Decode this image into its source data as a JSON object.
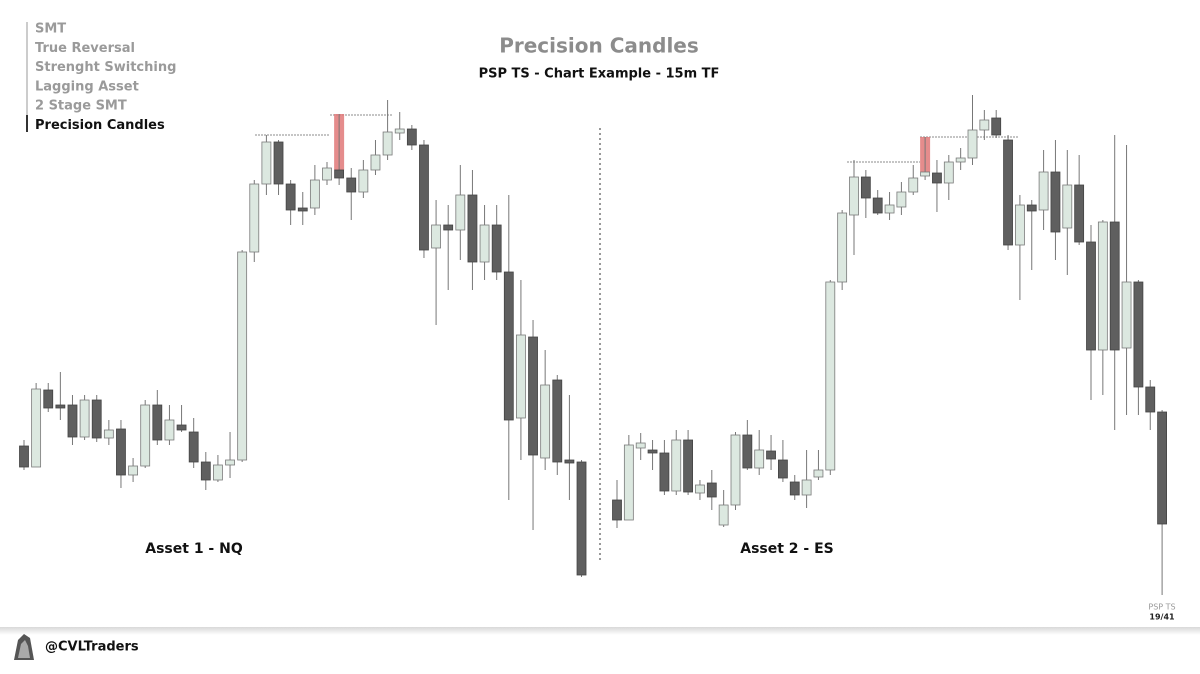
{
  "menu": [
    "SMT",
    "True Reversal",
    "Strenght Switching",
    "Lagging Asset",
    "2 Stage SMT",
    "Precision Candles"
  ],
  "header": {
    "title": "Precision Candles",
    "subtitle": "PSP TS - Chart Example - 15m TF"
  },
  "footer": {
    "handle": "@CVLTraders",
    "deck": "PSP TS",
    "page": "19/41"
  },
  "chart_data": [
    {
      "type": "candlestick",
      "label": "Asset 1 - NQ",
      "ylim": [
        0,
        600
      ],
      "up_color": "#dce8e0",
      "down_color": "#5f5f5f",
      "highlight": [
        26
      ],
      "highlight_color": "#e07878",
      "open": [
        154,
        133,
        210,
        195,
        195,
        163,
        200,
        162,
        171,
        125,
        134,
        195,
        160,
        175,
        168,
        138,
        120,
        135,
        140,
        348,
        416,
        458,
        416,
        392,
        392,
        420,
        430,
        422,
        408,
        430,
        445,
        467,
        471,
        455,
        352,
        375,
        370,
        405,
        338,
        375,
        328,
        182,
        263,
        142,
        220,
        140,
        138
      ],
      "high": [
        160,
        217,
        217,
        228,
        205,
        205,
        205,
        180,
        180,
        142,
        200,
        210,
        195,
        195,
        182,
        148,
        145,
        168,
        350,
        420,
        465,
        460,
        420,
        408,
        435,
        438,
        486,
        432,
        440,
        460,
        500,
        488,
        475,
        460,
        400,
        395,
        435,
        430,
        395,
        395,
        405,
        320,
        280,
        250,
        225,
        205,
        140
      ],
      "low": [
        130,
        133,
        188,
        180,
        155,
        160,
        158,
        155,
        112,
        118,
        132,
        155,
        155,
        168,
        132,
        110,
        118,
        122,
        138,
        338,
        405,
        405,
        375,
        375,
        385,
        415,
        415,
        380,
        402,
        425,
        440,
        460,
        450,
        342,
        275,
        310,
        340,
        310,
        320,
        320,
        100,
        140,
        70,
        130,
        125,
        100,
        23
      ],
      "close": [
        133,
        211,
        192,
        192,
        163,
        200,
        162,
        170,
        125,
        134,
        195,
        160,
        180,
        170,
        138,
        120,
        135,
        140,
        348,
        416,
        458,
        416,
        390,
        389,
        420,
        432,
        422,
        408,
        430,
        445,
        468,
        471,
        455,
        350,
        375,
        370,
        405,
        338,
        375,
        328,
        180,
        265,
        145,
        215,
        138,
        137,
        25
      ]
    },
    {
      "type": "candlestick",
      "label": "Asset 2 - ES",
      "ylim": [
        0,
        600
      ],
      "up_color": "#dce8e0",
      "down_color": "#5f5f5f",
      "highlight": [
        26
      ],
      "highlight_color": "#e07878",
      "open": [
        100,
        80,
        152,
        150,
        147,
        109,
        160,
        107,
        117,
        75,
        95,
        165,
        132,
        149,
        140,
        118,
        105,
        123,
        130,
        318,
        385,
        423,
        402,
        387,
        393,
        408,
        424,
        427,
        417,
        438,
        442,
        470,
        482,
        460,
        355,
        395,
        390,
        428,
        372,
        415,
        358,
        250,
        378,
        252,
        318,
        213,
        188
      ],
      "high": [
        120,
        165,
        167,
        160,
        160,
        170,
        170,
        120,
        130,
        110,
        168,
        180,
        170,
        165,
        160,
        125,
        150,
        150,
        320,
        390,
        440,
        430,
        410,
        408,
        418,
        435,
        463,
        440,
        445,
        452,
        505,
        490,
        490,
        465,
        405,
        400,
        450,
        460,
        450,
        445,
        375,
        380,
        465,
        455,
        320,
        220,
        190
      ],
      "low": [
        72,
        80,
        140,
        130,
        105,
        105,
        105,
        100,
        90,
        73,
        90,
        130,
        125,
        130,
        118,
        100,
        92,
        120,
        125,
        310,
        345,
        382,
        385,
        380,
        385,
        405,
        420,
        388,
        400,
        430,
        435,
        460,
        462,
        350,
        300,
        330,
        370,
        340,
        325,
        355,
        200,
        205,
        170,
        185,
        185,
        170,
        5
      ],
      "close": [
        80,
        155,
        157,
        147,
        109,
        160,
        108,
        115,
        103,
        95,
        165,
        132,
        150,
        141,
        122,
        105,
        120,
        130,
        318,
        387,
        423,
        402,
        387,
        395,
        408,
        422,
        428,
        417,
        438,
        442,
        470,
        480,
        465,
        355,
        395,
        389,
        428,
        368,
        415,
        358,
        250,
        378,
        250,
        318,
        213,
        188,
        76
      ]
    }
  ]
}
